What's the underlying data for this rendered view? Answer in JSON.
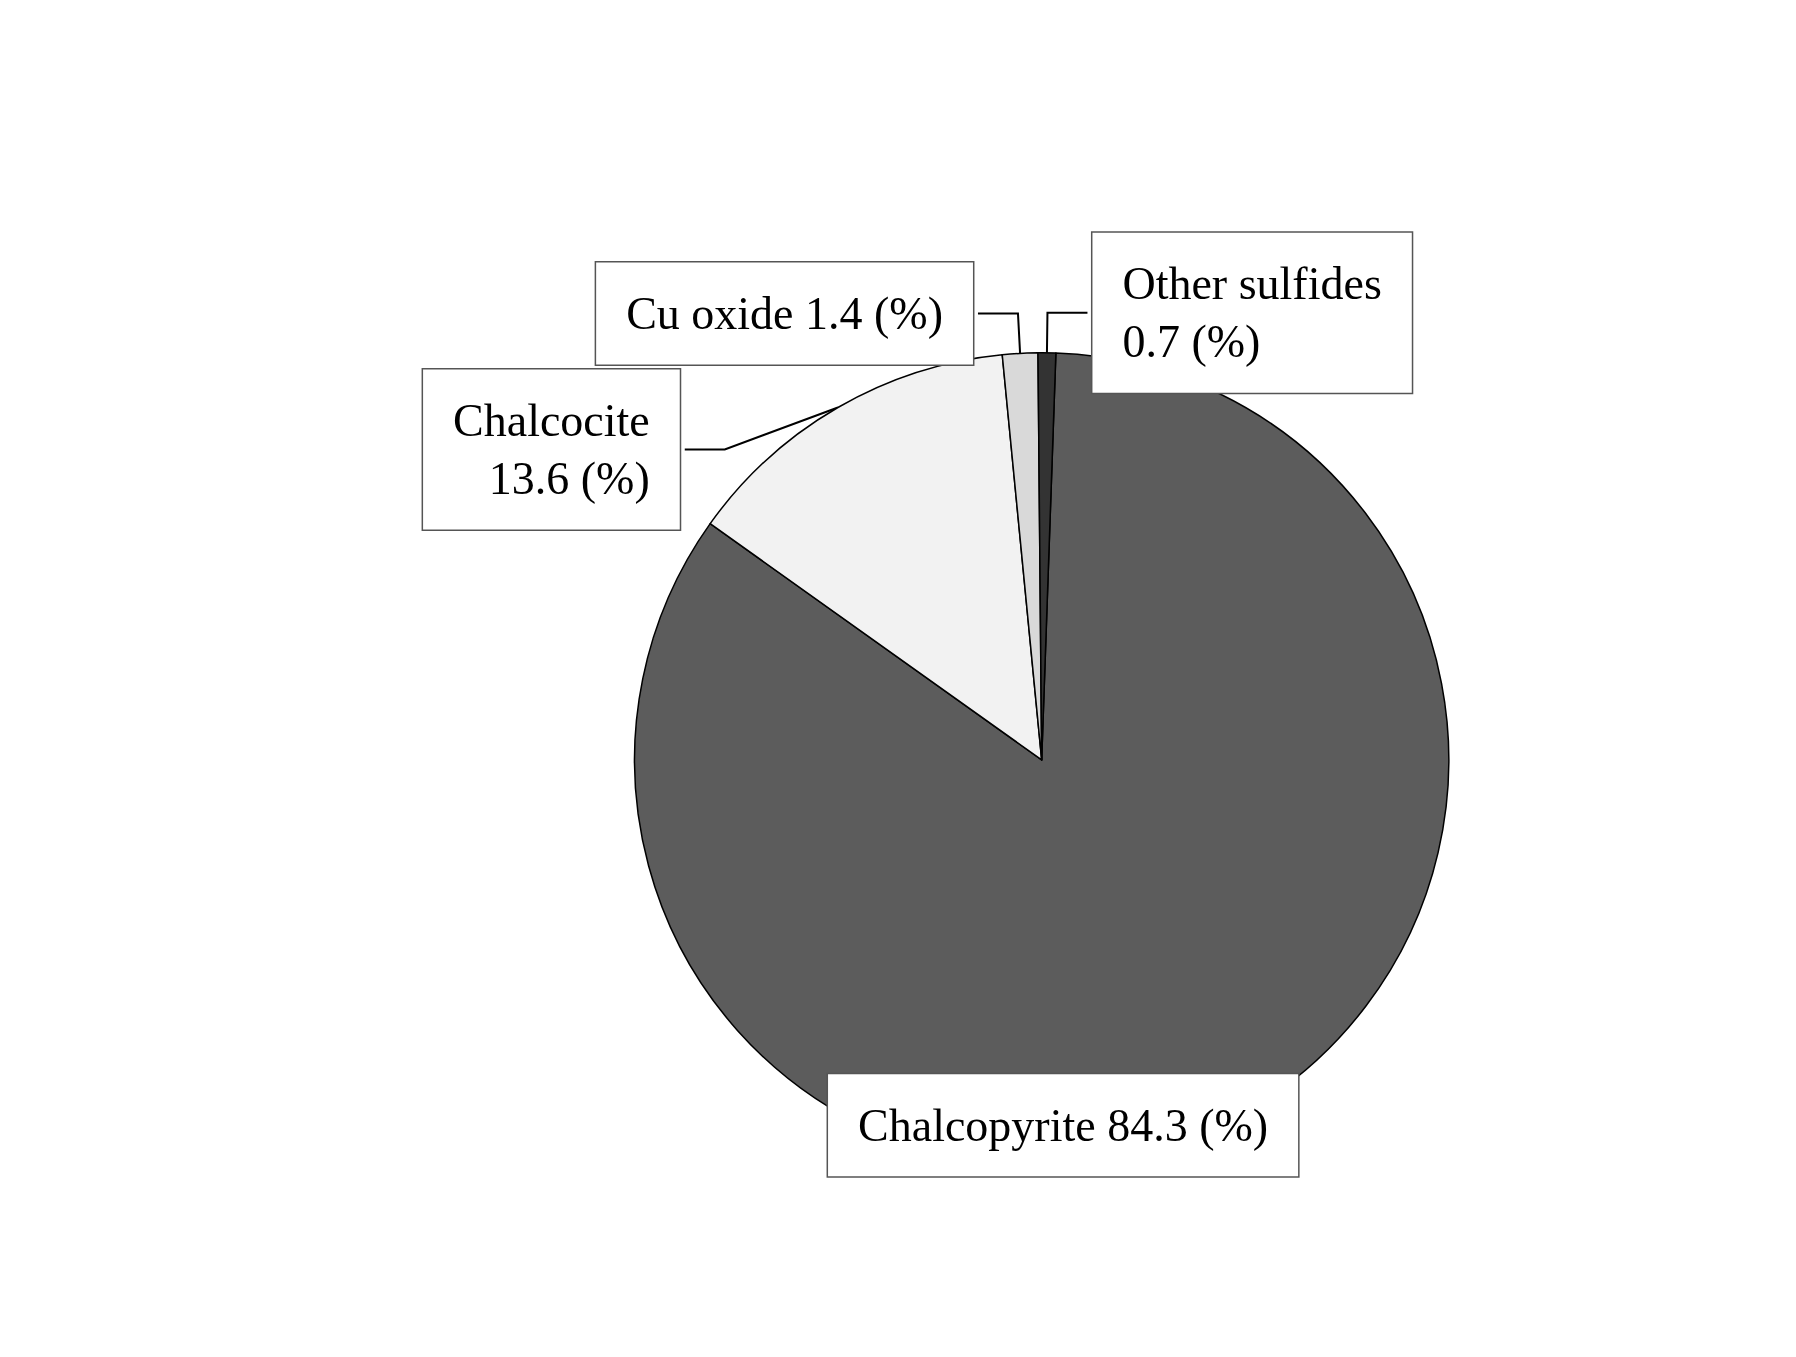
{
  "chart_data": {
    "type": "pie",
    "categories": [
      "Chalcopyrite",
      "Chalcocite",
      "Cu oxide",
      "Other sulfides"
    ],
    "values": [
      84.3,
      13.6,
      1.4,
      0.7
    ],
    "value_labels": [
      "84.3 (%)",
      "13.6 (%)",
      "1.4 (%)",
      "0.7 (%)"
    ],
    "colors": [
      "#5c5c5c",
      "#f2f2f2",
      "#d9d9d9",
      "#333333"
    ],
    "legend": false
  }
}
